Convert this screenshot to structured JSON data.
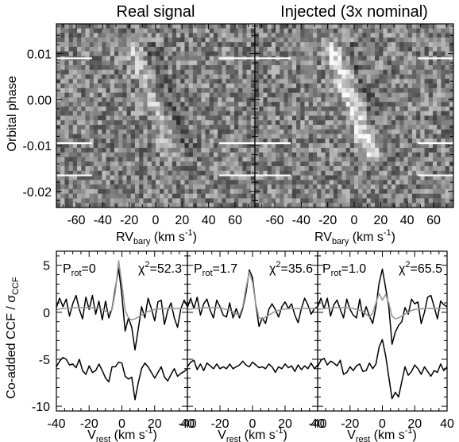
{
  "chart_data": [
    {
      "type": "heatmap",
      "title": "Real signal",
      "xlabel": "RV",
      "xlabel_sub": "bary",
      "xlabel_unit": " (km s",
      "xlabel_unit_sup": "-1",
      "xlabel_close": ")",
      "ylabel": "Orbital phase",
      "xlim": [
        -75,
        75
      ],
      "ylim": [
        -0.0235,
        0.0165
      ],
      "xticks": [
        "-60",
        "-40",
        "-20",
        "0",
        "20",
        "40",
        "60"
      ],
      "yticks": [
        "0.01",
        "0.00",
        "-0.01",
        "-0.02"
      ],
      "colormap": "grayscale"
    },
    {
      "type": "heatmap",
      "title": "Injected (3x nominal)",
      "xlabel": "RV",
      "xlabel_sub": "bary",
      "xlabel_unit": " (km s",
      "xlabel_unit_sup": "-1",
      "xlabel_close": ")",
      "xlim": [
        -75,
        75
      ],
      "ylim": [
        -0.0235,
        0.0165
      ],
      "xticks": [
        "-60",
        "-40",
        "-20",
        "0",
        "20",
        "40",
        "60"
      ],
      "colormap": "grayscale"
    },
    {
      "type": "line",
      "ylabel": "Co-added CCF / σ",
      "ylabel_sub": "CCF",
      "xlim": [
        -40,
        40
      ],
      "ylim": [
        -10.5,
        6.5
      ],
      "xticks": [
        "-40",
        "-20",
        "0",
        "20",
        "40"
      ],
      "yticks": [
        "5",
        "0",
        "-5",
        "-10"
      ],
      "xlabel": "V",
      "xlabel_sub": "rest",
      "xlabel_unit": " (km s",
      "xlabel_unit_sup": "-1",
      "xlabel_close": ")",
      "panels": [
        {
          "annot_p": "P",
          "annot_p_sub": "rot",
          "annot_p_val": "=0",
          "annot_chi": "χ",
          "annot_chi_sup": "2",
          "annot_chi_val": "=52.3",
          "series": [
            {
              "color": "#000000",
              "x": [
                -40,
                -38,
                -36,
                -34,
                -32,
                -30,
                -28,
                -26,
                -24,
                -22,
                -20,
                -18,
                -16,
                -14,
                -12,
                -10,
                -8,
                -6,
                -4,
                -2,
                0,
                2,
                4,
                6,
                8,
                10,
                12,
                14,
                16,
                18,
                20,
                22,
                24,
                26,
                28,
                30,
                32,
                34,
                36,
                38,
                40
              ],
              "y": [
                0.5,
                1.5,
                0.6,
                1.4,
                -0.4,
                0.9,
                1.8,
                0.3,
                -0.7,
                1.6,
                0.3,
                1.8,
                -0.2,
                1.2,
                -0.8,
                1.2,
                -0.6,
                0.4,
                2.6,
                4.7,
                1.8,
                -2.0,
                -0.6,
                -1.6,
                -4.0,
                -1.8,
                0.6,
                -0.6,
                1.5,
                0.4,
                -0.9,
                1.1,
                1.3,
                -1.3,
                0.2,
                1.0,
                -0.6,
                -1.6,
                0.4,
                1.3,
                0.6
              ]
            },
            {
              "color": "#999999",
              "x": [
                -40,
                -38,
                -36,
                -34,
                -32,
                -30,
                -28,
                -26,
                -24,
                -22,
                -20,
                -18,
                -16,
                -14,
                -12,
                -10,
                -8,
                -6,
                -4,
                -2,
                0,
                2,
                4,
                6,
                8,
                10,
                12,
                14,
                16,
                18,
                20,
                22,
                24,
                26,
                28,
                30,
                32,
                34,
                36,
                38,
                40
              ],
              "y": [
                0.3,
                0.35,
                0.4,
                0.42,
                0.45,
                0.48,
                0.5,
                0.5,
                0.5,
                0.5,
                0.5,
                0.5,
                0.45,
                0.4,
                0.3,
                0.15,
                -0.05,
                0.3,
                2.2,
                5.5,
                3.0,
                0.2,
                -0.6,
                -0.8,
                -0.7,
                -0.5,
                -0.3,
                -0.1,
                0.1,
                0.2,
                0.3,
                0.35,
                0.38,
                0.4,
                0.4,
                0.4,
                0.4,
                0.4,
                0.4,
                0.4,
                0.4
              ]
            },
            {
              "color": "#000000",
              "x": [
                -40,
                -38,
                -36,
                -34,
                -32,
                -30,
                -28,
                -26,
                -24,
                -22,
                -20,
                -18,
                -16,
                -14,
                -12,
                -10,
                -8,
                -6,
                -4,
                -2,
                0,
                2,
                4,
                6,
                8,
                10,
                12,
                14,
                16,
                18,
                20,
                22,
                24,
                26,
                28,
                30,
                32,
                34,
                36,
                38,
                40
              ],
              "y": [
                -5.8,
                -5.2,
                -4.8,
                -5.0,
                -5.6,
                -5.5,
                -5.9,
                -5.0,
                -6.2,
                -6.6,
                -5.7,
                -6.4,
                -6.2,
                -5.5,
                -6.2,
                -7.0,
                -7.4,
                -5.8,
                -5.8,
                -5.3,
                -5.4,
                -6.8,
                -7.1,
                -6.9,
                -9.3,
                -7.5,
                -6.0,
                -5.4,
                -5.8,
                -6.4,
                -7.0,
                -6.4,
                -5.8,
                -6.9,
                -7.3,
                -6.6,
                -6.0,
                -6.8,
                -6.5,
                -6.3,
                -6.0
              ]
            }
          ]
        },
        {
          "annot_p": "P",
          "annot_p_sub": "rot",
          "annot_p_val": "=1.7",
          "annot_chi": "χ",
          "annot_chi_sup": "2",
          "annot_chi_val": "=35.6",
          "series": [
            {
              "color": "#000000",
              "x": [
                -40,
                -38,
                -36,
                -34,
                -32,
                -30,
                -28,
                -26,
                -24,
                -22,
                -20,
                -18,
                -16,
                -14,
                -12,
                -10,
                -8,
                -6,
                -4,
                -2,
                0,
                2,
                4,
                6,
                8,
                10,
                12,
                14,
                16,
                18,
                20,
                22,
                24,
                26,
                28,
                30,
                32,
                34,
                36,
                38,
                40
              ],
              "y": [
                0.5,
                1.5,
                0.4,
                1.6,
                -0.3,
                0.9,
                1.4,
                0.2,
                -0.6,
                1.3,
                0.6,
                -0.3,
                -0.5,
                1.0,
                -0.6,
                0.4,
                -0.6,
                0.4,
                2.1,
                4.5,
                3.7,
                0.8,
                -1.5,
                -0.6,
                -1.2,
                0.3,
                0.9,
                0.3,
                -0.5,
                0.6,
                1.1,
                0.4,
                0.9,
                -0.3,
                -1.1,
                0.4,
                1.5,
                0.8,
                -0.2,
                0.4,
                0.6
              ]
            },
            {
              "color": "#999999",
              "x": [
                -40,
                -38,
                -36,
                -34,
                -32,
                -30,
                -28,
                -26,
                -24,
                -22,
                -20,
                -18,
                -16,
                -14,
                -12,
                -10,
                -8,
                -6,
                -4,
                -2,
                0,
                2,
                4,
                6,
                8,
                10,
                12,
                14,
                16,
                18,
                20,
                22,
                24,
                26,
                28,
                30,
                32,
                34,
                36,
                38,
                40
              ],
              "y": [
                0.3,
                0.35,
                0.4,
                0.42,
                0.45,
                0.48,
                0.5,
                0.5,
                0.5,
                0.5,
                0.45,
                0.4,
                0.3,
                0.2,
                0.05,
                -0.2,
                -0.3,
                0.6,
                2.6,
                4.3,
                3.2,
                0.9,
                -0.6,
                -0.7,
                -0.5,
                -0.3,
                -0.1,
                0.1,
                0.2,
                0.3,
                0.35,
                0.38,
                0.4,
                0.4,
                0.4,
                0.4,
                0.4,
                0.4,
                0.4,
                0.4,
                0.4
              ]
            },
            {
              "color": "#000000",
              "x": [
                -40,
                -38,
                -36,
                -34,
                -32,
                -30,
                -28,
                -26,
                -24,
                -22,
                -20,
                -18,
                -16,
                -14,
                -12,
                -10,
                -8,
                -6,
                -4,
                -2,
                0,
                2,
                4,
                6,
                8,
                10,
                12,
                14,
                16,
                18,
                20,
                22,
                24,
                26,
                28,
                30,
                32,
                34,
                36,
                38,
                40
              ],
              "y": [
                -5.8,
                -5.3,
                -5.1,
                -6.1,
                -5.5,
                -6.2,
                -5.4,
                -5.7,
                -6.0,
                -5.5,
                -6.0,
                -5.8,
                -6.0,
                -5.5,
                -6.0,
                -5.8,
                -5.6,
                -5.2,
                -5.6,
                -5.8,
                -5.3,
                -5.6,
                -5.9,
                -5.8,
                -6.0,
                -5.5,
                -5.8,
                -6.4,
                -5.8,
                -6.0,
                -5.5,
                -5.9,
                -5.7,
                -6.3,
                -5.6,
                -6.1,
                -5.7,
                -6.0,
                -5.4,
                -6.0,
                -5.6
              ]
            }
          ]
        },
        {
          "annot_p": "P",
          "annot_p_sub": "rot",
          "annot_p_val": "=1.0",
          "annot_chi": "χ",
          "annot_chi_sup": "2",
          "annot_chi_val": "=65.5",
          "series": [
            {
              "color": "#000000",
              "x": [
                -40,
                -38,
                -36,
                -34,
                -32,
                -30,
                -28,
                -26,
                -24,
                -22,
                -20,
                -18,
                -16,
                -14,
                -12,
                -10,
                -8,
                -6,
                -4,
                -2,
                0,
                2,
                4,
                6,
                8,
                10,
                12,
                14,
                16,
                18,
                20,
                22,
                24,
                26,
                28,
                30,
                32,
                34,
                36,
                38,
                40
              ],
              "y": [
                0.6,
                1.5,
                0.4,
                1.5,
                -0.4,
                0.8,
                1.3,
                0.3,
                -0.6,
                1.4,
                0.3,
                -0.3,
                -0.6,
                1.4,
                -0.5,
                0.6,
                -0.4,
                -1.2,
                0.6,
                3.1,
                4.6,
                2.6,
                0.6,
                -3.4,
                -2.1,
                -1.4,
                -1.0,
                0.5,
                -0.2,
                1.4,
                0.9,
                1.1,
                -1.2,
                0.0,
                1.6,
                1.8,
                0.6,
                -0.7,
                1.2,
                0.8,
                0.6
              ]
            },
            {
              "color": "#999999",
              "x": [
                -40,
                -38,
                -36,
                -34,
                -32,
                -30,
                -28,
                -26,
                -24,
                -22,
                -20,
                -18,
                -16,
                -14,
                -12,
                -10,
                -8,
                -6,
                -4,
                -2,
                0,
                2,
                4,
                6,
                8,
                10,
                12,
                14,
                16,
                18,
                20,
                22,
                24,
                26,
                28,
                30,
                32,
                34,
                36,
                38,
                40
              ],
              "y": [
                0.3,
                0.35,
                0.4,
                0.42,
                0.45,
                0.48,
                0.5,
                0.5,
                0.5,
                0.5,
                0.45,
                0.4,
                0.3,
                0.2,
                0.1,
                -0.2,
                -0.5,
                -0.1,
                1.0,
                2.0,
                1.3,
                1.9,
                1.0,
                -0.4,
                -0.7,
                -0.6,
                -0.4,
                -0.2,
                0.0,
                0.2,
                0.3,
                0.35,
                0.38,
                0.4,
                0.4,
                0.4,
                0.4,
                0.4,
                0.4,
                0.4,
                0.4
              ]
            },
            {
              "color": "#000000",
              "x": [
                -40,
                -38,
                -36,
                -34,
                -32,
                -30,
                -28,
                -26,
                -24,
                -22,
                -20,
                -18,
                -16,
                -14,
                -12,
                -10,
                -8,
                -6,
                -4,
                -2,
                0,
                2,
                4,
                6,
                8,
                10,
                12,
                14,
                16,
                18,
                20,
                22,
                24,
                26,
                28,
                30,
                32,
                34,
                36,
                38,
                40
              ],
              "y": [
                -5.8,
                -5.1,
                -4.9,
                -5.6,
                -5.2,
                -5.4,
                -5.7,
                -5.1,
                -6.6,
                -6.4,
                -5.8,
                -6.2,
                -5.7,
                -5.5,
                -6.3,
                -6.2,
                -5.4,
                -6.0,
                -5.5,
                -3.7,
                -2.9,
                -4.6,
                -6.9,
                -9.2,
                -8.5,
                -9.0,
                -7.4,
                -5.8,
                -6.7,
                -6.3,
                -5.6,
                -6.0,
                -6.6,
                -5.8,
                -6.3,
                -6.8,
                -6.2,
                -6.4,
                -5.5,
                -6.2,
                -5.8
              ]
            }
          ]
        }
      ]
    }
  ]
}
